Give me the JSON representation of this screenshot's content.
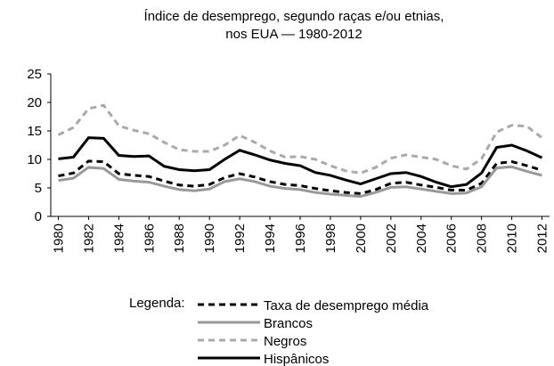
{
  "chart_data": {
    "type": "line",
    "title": [
      "Índice de desemprego, segundo raças e/ou etnias,",
      "nos EUA — 1980-2012"
    ],
    "legend_title": "Legenda:",
    "x": [
      1980,
      1981,
      1982,
      1983,
      1984,
      1985,
      1986,
      1987,
      1988,
      1989,
      1990,
      1991,
      1992,
      1993,
      1994,
      1995,
      1996,
      1997,
      1998,
      1999,
      2000,
      2001,
      2002,
      2003,
      2004,
      2005,
      2006,
      2007,
      2008,
      2009,
      2010,
      2011,
      2012
    ],
    "xlim": [
      1979.5,
      2012.5
    ],
    "xticks": [
      1980,
      1982,
      1984,
      1986,
      1988,
      1990,
      1992,
      1994,
      1996,
      1998,
      2000,
      2002,
      2004,
      2006,
      2008,
      2010,
      2012
    ],
    "ylim": [
      0,
      25
    ],
    "yticks": [
      0,
      5,
      10,
      15,
      20,
      25
    ],
    "grid": false,
    "series": [
      {
        "name": "Taxa de desemprego média",
        "color": "#000000",
        "dashed": true,
        "values": [
          7.1,
          7.6,
          9.7,
          9.6,
          7.5,
          7.2,
          7.0,
          6.2,
          5.5,
          5.3,
          5.6,
          6.8,
          7.5,
          6.9,
          6.1,
          5.6,
          5.4,
          4.9,
          4.5,
          4.2,
          4.0,
          4.7,
          5.8,
          6.0,
          5.5,
          5.1,
          4.6,
          4.6,
          5.8,
          9.3,
          9.6,
          8.9,
          8.1
        ]
      },
      {
        "name": "Brancos",
        "color": "#999999",
        "dashed": false,
        "values": [
          6.3,
          6.7,
          8.6,
          8.4,
          6.5,
          6.2,
          6.0,
          5.3,
          4.7,
          4.5,
          4.8,
          6.1,
          6.6,
          6.1,
          5.3,
          4.9,
          4.7,
          4.2,
          3.9,
          3.7,
          3.5,
          4.2,
          5.1,
          5.2,
          4.8,
          4.4,
          4.0,
          4.1,
          5.2,
          8.5,
          8.7,
          7.9,
          7.2
        ]
      },
      {
        "name": "Negros",
        "color": "#aaaaaa",
        "dashed": true,
        "values": [
          14.3,
          15.6,
          18.9,
          19.5,
          15.9,
          15.1,
          14.5,
          13.0,
          11.7,
          11.4,
          11.4,
          12.5,
          14.2,
          13.0,
          11.5,
          10.4,
          10.5,
          10.0,
          8.9,
          8.0,
          7.6,
          8.6,
          10.2,
          10.8,
          10.4,
          10.0,
          8.9,
          8.3,
          10.1,
          14.8,
          16.0,
          15.8,
          13.8
        ]
      },
      {
        "name": "Hispânicos",
        "color": "#000000",
        "dashed": false,
        "values": [
          10.1,
          10.4,
          13.8,
          13.7,
          10.7,
          10.5,
          10.6,
          8.8,
          8.2,
          8.0,
          8.2,
          10.0,
          11.6,
          10.8,
          9.9,
          9.3,
          8.9,
          7.7,
          7.2,
          6.4,
          5.7,
          6.6,
          7.5,
          7.7,
          7.0,
          6.0,
          5.2,
          5.6,
          7.6,
          12.1,
          12.5,
          11.5,
          10.3
        ]
      }
    ]
  }
}
